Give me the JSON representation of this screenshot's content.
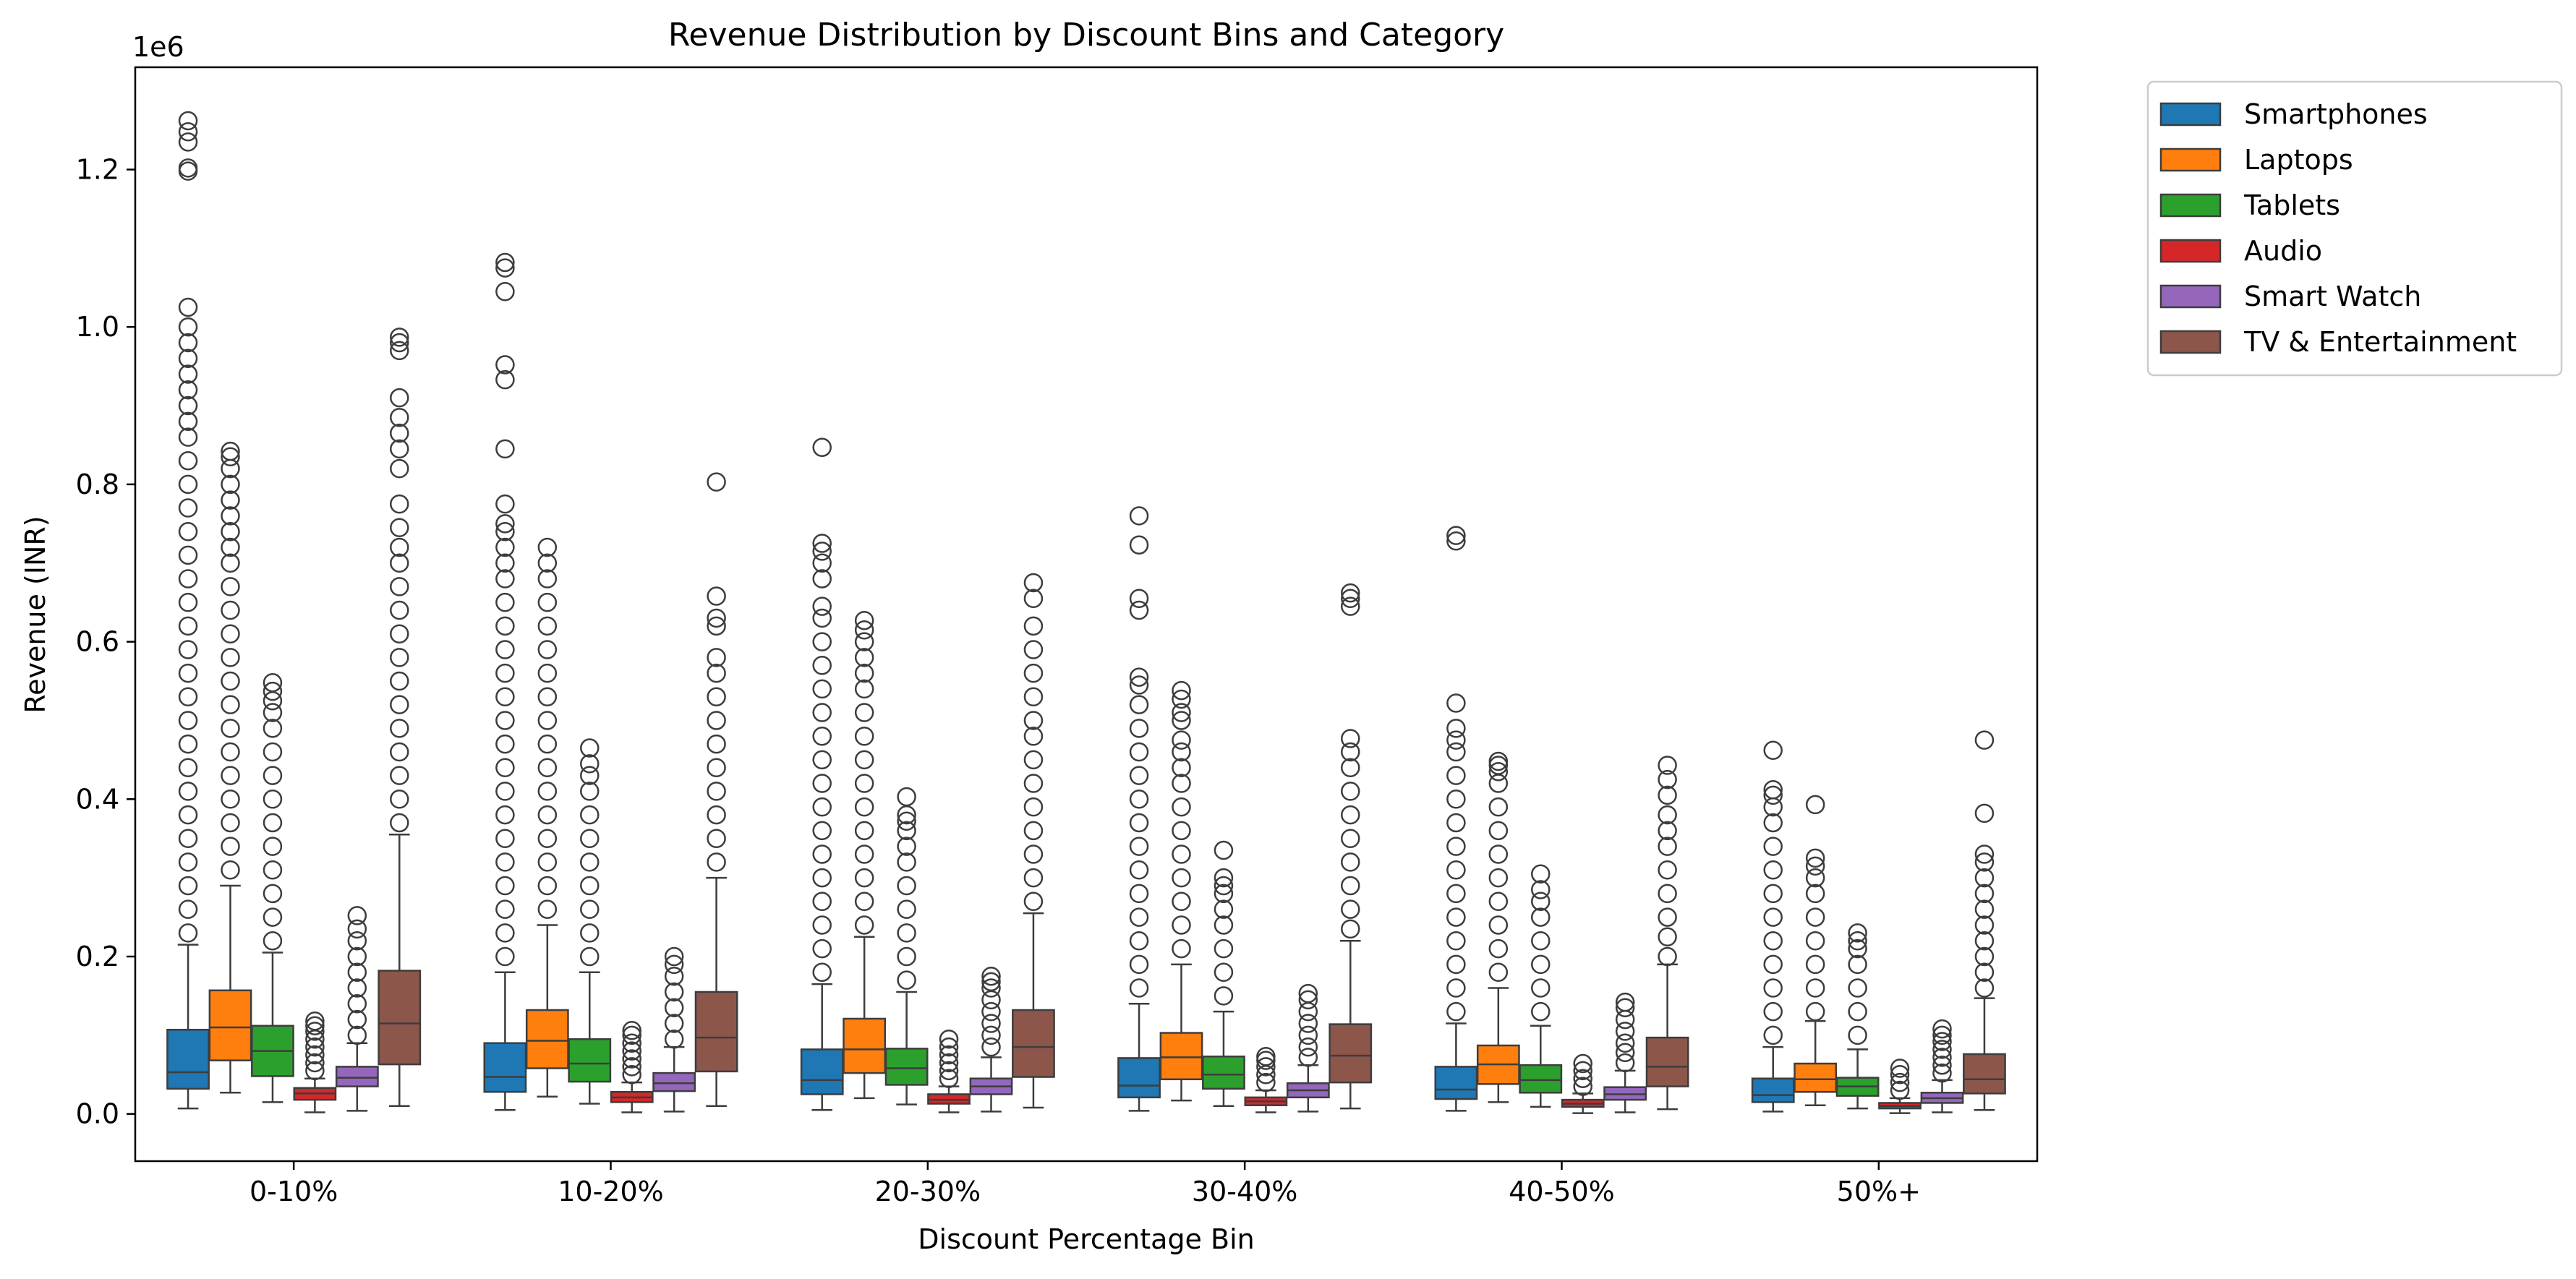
{
  "chart_data": {
    "type": "box",
    "title": "Revenue Distribution by Discount Bins and Category",
    "xlabel": "Discount Percentage Bin",
    "ylabel": "Revenue (INR)",
    "y_offset_label": "1e6",
    "y_scale": 1000000,
    "ylim": [
      -0.06,
      1.33
    ],
    "yticks": [
      0.0,
      0.2,
      0.4,
      0.6,
      0.8,
      1.0,
      1.2
    ],
    "ytick_labels": [
      "0.0",
      "0.2",
      "0.4",
      "0.6",
      "0.8",
      "1.0",
      "1.2"
    ],
    "categories": [
      "0-10%",
      "10-20%",
      "20-30%",
      "30-40%",
      "40-50%",
      "50%+"
    ],
    "legend_position": "outside-top-right",
    "grid": false,
    "series": [
      {
        "name": "Smartphones",
        "color": "#1f77b4",
        "boxes": [
          {
            "q1": 0.032,
            "median": 0.053,
            "q3": 0.107,
            "whisker_low": 0.007,
            "whisker_high": 0.215,
            "outliers": [
              0.23,
              0.26,
              0.29,
              0.32,
              0.35,
              0.38,
              0.41,
              0.44,
              0.47,
              0.5,
              0.53,
              0.56,
              0.59,
              0.62,
              0.65,
              0.68,
              0.71,
              0.74,
              0.77,
              0.8,
              0.83,
              0.86,
              0.88,
              0.9,
              0.92,
              0.94,
              0.96,
              0.98,
              1.0,
              1.025,
              1.198,
              1.202,
              1.235,
              1.248,
              1.262
            ]
          },
          {
            "q1": 0.028,
            "median": 0.047,
            "q3": 0.09,
            "whisker_low": 0.005,
            "whisker_high": 0.18,
            "outliers": [
              0.2,
              0.23,
              0.26,
              0.29,
              0.32,
              0.35,
              0.38,
              0.41,
              0.44,
              0.47,
              0.5,
              0.53,
              0.56,
              0.59,
              0.62,
              0.65,
              0.68,
              0.7,
              0.72,
              0.74,
              0.75,
              0.775,
              0.845,
              0.933,
              0.952,
              1.045,
              1.075,
              1.082
            ]
          },
          {
            "q1": 0.025,
            "median": 0.043,
            "q3": 0.082,
            "whisker_low": 0.005,
            "whisker_high": 0.165,
            "outliers": [
              0.18,
              0.21,
              0.24,
              0.27,
              0.3,
              0.33,
              0.36,
              0.39,
              0.42,
              0.45,
              0.48,
              0.51,
              0.54,
              0.57,
              0.6,
              0.63,
              0.645,
              0.68,
              0.7,
              0.715,
              0.725,
              0.847
            ]
          },
          {
            "q1": 0.021,
            "median": 0.036,
            "q3": 0.071,
            "whisker_low": 0.004,
            "whisker_high": 0.14,
            "outliers": [
              0.16,
              0.19,
              0.22,
              0.25,
              0.28,
              0.31,
              0.34,
              0.37,
              0.4,
              0.43,
              0.46,
              0.49,
              0.52,
              0.545,
              0.555,
              0.64,
              0.655,
              0.723,
              0.76
            ]
          },
          {
            "q1": 0.019,
            "median": 0.031,
            "q3": 0.06,
            "whisker_low": 0.004,
            "whisker_high": 0.115,
            "outliers": [
              0.13,
              0.16,
              0.19,
              0.22,
              0.25,
              0.28,
              0.31,
              0.34,
              0.37,
              0.4,
              0.43,
              0.46,
              0.475,
              0.49,
              0.522,
              0.728,
              0.735
            ]
          },
          {
            "q1": 0.015,
            "median": 0.024,
            "q3": 0.045,
            "whisker_low": 0.003,
            "whisker_high": 0.085,
            "outliers": [
              0.1,
              0.13,
              0.16,
              0.19,
              0.22,
              0.25,
              0.28,
              0.31,
              0.34,
              0.37,
              0.39,
              0.405,
              0.412,
              0.462
            ]
          }
        ]
      },
      {
        "name": "Laptops",
        "color": "#ff7f0e",
        "boxes": [
          {
            "q1": 0.068,
            "median": 0.11,
            "q3": 0.157,
            "whisker_low": 0.027,
            "whisker_high": 0.29,
            "outliers": [
              0.31,
              0.34,
              0.37,
              0.4,
              0.43,
              0.46,
              0.49,
              0.52,
              0.55,
              0.58,
              0.61,
              0.64,
              0.67,
              0.7,
              0.72,
              0.74,
              0.76,
              0.78,
              0.8,
              0.82,
              0.835,
              0.842
            ]
          },
          {
            "q1": 0.058,
            "median": 0.093,
            "q3": 0.132,
            "whisker_low": 0.022,
            "whisker_high": 0.24,
            "outliers": [
              0.26,
              0.29,
              0.32,
              0.35,
              0.38,
              0.41,
              0.44,
              0.47,
              0.5,
              0.53,
              0.56,
              0.59,
              0.62,
              0.65,
              0.68,
              0.7,
              0.72
            ]
          },
          {
            "q1": 0.052,
            "median": 0.082,
            "q3": 0.121,
            "whisker_low": 0.02,
            "whisker_high": 0.225,
            "outliers": [
              0.24,
              0.27,
              0.3,
              0.33,
              0.36,
              0.39,
              0.42,
              0.45,
              0.48,
              0.51,
              0.54,
              0.56,
              0.58,
              0.6,
              0.615,
              0.627
            ]
          },
          {
            "q1": 0.044,
            "median": 0.072,
            "q3": 0.103,
            "whisker_low": 0.017,
            "whisker_high": 0.19,
            "outliers": [
              0.21,
              0.24,
              0.27,
              0.3,
              0.33,
              0.36,
              0.39,
              0.42,
              0.44,
              0.46,
              0.475,
              0.5,
              0.51,
              0.527,
              0.538
            ]
          },
          {
            "q1": 0.038,
            "median": 0.063,
            "q3": 0.087,
            "whisker_low": 0.015,
            "whisker_high": 0.16,
            "outliers": [
              0.18,
              0.21,
              0.24,
              0.27,
              0.3,
              0.33,
              0.36,
              0.39,
              0.42,
              0.435,
              0.443,
              0.448
            ]
          },
          {
            "q1": 0.028,
            "median": 0.044,
            "q3": 0.064,
            "whisker_low": 0.011,
            "whisker_high": 0.118,
            "outliers": [
              0.13,
              0.16,
              0.19,
              0.22,
              0.25,
              0.28,
              0.3,
              0.315,
              0.325,
              0.393
            ]
          }
        ]
      },
      {
        "name": "Tablets",
        "color": "#2ca02c",
        "boxes": [
          {
            "q1": 0.048,
            "median": 0.08,
            "q3": 0.112,
            "whisker_low": 0.015,
            "whisker_high": 0.205,
            "outliers": [
              0.22,
              0.25,
              0.28,
              0.31,
              0.34,
              0.37,
              0.4,
              0.43,
              0.46,
              0.49,
              0.51,
              0.525,
              0.537,
              0.548
            ]
          },
          {
            "q1": 0.041,
            "median": 0.064,
            "q3": 0.095,
            "whisker_low": 0.013,
            "whisker_high": 0.18,
            "outliers": [
              0.2,
              0.23,
              0.26,
              0.29,
              0.32,
              0.35,
              0.38,
              0.41,
              0.43,
              0.445,
              0.465
            ]
          },
          {
            "q1": 0.037,
            "median": 0.058,
            "q3": 0.083,
            "whisker_low": 0.012,
            "whisker_high": 0.155,
            "outliers": [
              0.17,
              0.2,
              0.23,
              0.26,
              0.29,
              0.32,
              0.34,
              0.36,
              0.372,
              0.38,
              0.403
            ]
          },
          {
            "q1": 0.032,
            "median": 0.05,
            "q3": 0.073,
            "whisker_low": 0.01,
            "whisker_high": 0.13,
            "outliers": [
              0.15,
              0.18,
              0.21,
              0.24,
              0.26,
              0.28,
              0.29,
              0.3,
              0.335
            ]
          },
          {
            "q1": 0.027,
            "median": 0.043,
            "q3": 0.062,
            "whisker_low": 0.009,
            "whisker_high": 0.112,
            "outliers": [
              0.13,
              0.16,
              0.19,
              0.22,
              0.25,
              0.27,
              0.285,
              0.305
            ]
          },
          {
            "q1": 0.023,
            "median": 0.035,
            "q3": 0.046,
            "whisker_low": 0.007,
            "whisker_high": 0.082,
            "outliers": [
              0.1,
              0.13,
              0.16,
              0.19,
              0.21,
              0.22,
              0.23
            ]
          }
        ]
      },
      {
        "name": "Audio",
        "color": "#d62728",
        "boxes": [
          {
            "q1": 0.018,
            "median": 0.026,
            "q3": 0.033,
            "whisker_low": 0.002,
            "whisker_high": 0.045,
            "outliers": [
              0.055,
              0.065,
              0.075,
              0.085,
              0.095,
              0.105,
              0.112,
              0.118
            ]
          },
          {
            "q1": 0.015,
            "median": 0.021,
            "q3": 0.028,
            "whisker_low": 0.002,
            "whisker_high": 0.04,
            "outliers": [
              0.05,
              0.06,
              0.07,
              0.08,
              0.09,
              0.1,
              0.106
            ]
          },
          {
            "q1": 0.013,
            "median": 0.018,
            "q3": 0.025,
            "whisker_low": 0.002,
            "whisker_high": 0.035,
            "outliers": [
              0.045,
              0.055,
              0.065,
              0.075,
              0.085,
              0.095
            ]
          },
          {
            "q1": 0.011,
            "median": 0.016,
            "q3": 0.021,
            "whisker_low": 0.002,
            "whisker_high": 0.03,
            "outliers": [
              0.04,
              0.05,
              0.06,
              0.068,
              0.073
            ]
          },
          {
            "q1": 0.009,
            "median": 0.013,
            "q3": 0.018,
            "whisker_low": 0.001,
            "whisker_high": 0.026,
            "outliers": [
              0.035,
              0.045,
              0.055,
              0.064
            ]
          },
          {
            "q1": 0.007,
            "median": 0.01,
            "q3": 0.014,
            "whisker_low": 0.001,
            "whisker_high": 0.02,
            "outliers": [
              0.03,
              0.04,
              0.05,
              0.058
            ]
          }
        ]
      },
      {
        "name": "Smart Watch",
        "color": "#9467bd",
        "boxes": [
          {
            "q1": 0.035,
            "median": 0.046,
            "q3": 0.06,
            "whisker_low": 0.004,
            "whisker_high": 0.09,
            "outliers": [
              0.1,
              0.12,
              0.14,
              0.16,
              0.18,
              0.2,
              0.22,
              0.235,
              0.252
            ]
          },
          {
            "q1": 0.029,
            "median": 0.039,
            "q3": 0.052,
            "whisker_low": 0.003,
            "whisker_high": 0.085,
            "outliers": [
              0.095,
              0.115,
              0.135,
              0.155,
              0.175,
              0.19,
              0.2
            ]
          },
          {
            "q1": 0.025,
            "median": 0.035,
            "q3": 0.045,
            "whisker_low": 0.003,
            "whisker_high": 0.072,
            "outliers": [
              0.085,
              0.1,
              0.115,
              0.13,
              0.145,
              0.16,
              0.168,
              0.175
            ]
          },
          {
            "q1": 0.021,
            "median": 0.03,
            "q3": 0.039,
            "whisker_low": 0.003,
            "whisker_high": 0.062,
            "outliers": [
              0.072,
              0.085,
              0.1,
              0.115,
              0.13,
              0.145,
              0.153
            ]
          },
          {
            "q1": 0.018,
            "median": 0.025,
            "q3": 0.034,
            "whisker_low": 0.002,
            "whisker_high": 0.055,
            "outliers": [
              0.065,
              0.078,
              0.09,
              0.105,
              0.12,
              0.135,
              0.142
            ]
          },
          {
            "q1": 0.014,
            "median": 0.02,
            "q3": 0.027,
            "whisker_low": 0.002,
            "whisker_high": 0.043,
            "outliers": [
              0.052,
              0.062,
              0.072,
              0.082,
              0.092,
              0.1,
              0.108
            ]
          }
        ]
      },
      {
        "name": "TV & Entertainment",
        "color": "#8c564b",
        "boxes": [
          {
            "q1": 0.063,
            "median": 0.115,
            "q3": 0.182,
            "whisker_low": 0.01,
            "whisker_high": 0.355,
            "outliers": [
              0.37,
              0.4,
              0.43,
              0.46,
              0.49,
              0.52,
              0.55,
              0.58,
              0.61,
              0.64,
              0.67,
              0.7,
              0.72,
              0.745,
              0.775,
              0.82,
              0.845,
              0.865,
              0.885,
              0.91,
              0.97,
              0.98,
              0.987
            ]
          },
          {
            "q1": 0.054,
            "median": 0.097,
            "q3": 0.155,
            "whisker_low": 0.01,
            "whisker_high": 0.3,
            "outliers": [
              0.32,
              0.35,
              0.38,
              0.41,
              0.44,
              0.47,
              0.5,
              0.53,
              0.56,
              0.58,
              0.62,
              0.63,
              0.658,
              0.803
            ]
          },
          {
            "q1": 0.047,
            "median": 0.085,
            "q3": 0.132,
            "whisker_low": 0.008,
            "whisker_high": 0.255,
            "outliers": [
              0.27,
              0.3,
              0.33,
              0.36,
              0.39,
              0.42,
              0.45,
              0.48,
              0.5,
              0.53,
              0.56,
              0.59,
              0.62,
              0.655,
              0.675
            ]
          },
          {
            "q1": 0.04,
            "median": 0.074,
            "q3": 0.114,
            "whisker_low": 0.007,
            "whisker_high": 0.22,
            "outliers": [
              0.235,
              0.26,
              0.29,
              0.32,
              0.35,
              0.38,
              0.41,
              0.44,
              0.46,
              0.477,
              0.645,
              0.655,
              0.662
            ]
          },
          {
            "q1": 0.035,
            "median": 0.06,
            "q3": 0.097,
            "whisker_low": 0.006,
            "whisker_high": 0.19,
            "outliers": [
              0.2,
              0.225,
              0.25,
              0.28,
              0.31,
              0.34,
              0.36,
              0.38,
              0.405,
              0.425,
              0.443
            ]
          },
          {
            "q1": 0.026,
            "median": 0.044,
            "q3": 0.076,
            "whisker_low": 0.005,
            "whisker_high": 0.147,
            "outliers": [
              0.16,
              0.18,
              0.2,
              0.22,
              0.24,
              0.26,
              0.28,
              0.3,
              0.32,
              0.33,
              0.382,
              0.475
            ]
          }
        ]
      }
    ]
  }
}
